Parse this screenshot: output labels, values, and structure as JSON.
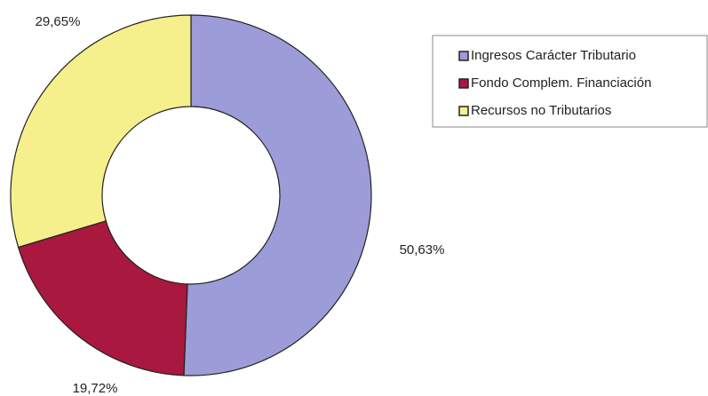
{
  "chart_data": {
    "type": "donut",
    "categories": [
      "Ingresos Carácter Tributario",
      "Fondo Complem. Financiación",
      "Recursos no Tributarios"
    ],
    "values": [
      50.63,
      19.72,
      29.65
    ],
    "value_labels": [
      "50,63%",
      "19,72%",
      "29,65%"
    ],
    "colors": [
      "#9c9cd8",
      "#a8183f",
      "#f6f08c"
    ],
    "legend": "top-right"
  }
}
